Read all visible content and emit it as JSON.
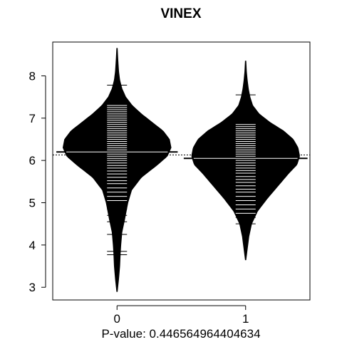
{
  "chart_data": {
    "type": "beanplot",
    "title": "VINEX",
    "xlabel": "P-value: 0.446564964404634",
    "ylabel": "",
    "categories": [
      "0",
      "1"
    ],
    "ylim": [
      2.7,
      8.8
    ],
    "yticks": [
      3,
      4,
      5,
      6,
      7,
      8
    ],
    "overall_mean": 6.13,
    "groups": [
      {
        "category": "0",
        "mean": 6.2,
        "range": [
          2.9,
          8.65
        ],
        "density": [
          [
            2.9,
            0.005
          ],
          [
            3.2,
            0.03
          ],
          [
            3.5,
            0.05
          ],
          [
            3.8,
            0.06
          ],
          [
            4.0,
            0.07
          ],
          [
            4.3,
            0.09
          ],
          [
            4.6,
            0.14
          ],
          [
            5.0,
            0.2
          ],
          [
            5.3,
            0.27
          ],
          [
            5.6,
            0.45
          ],
          [
            5.9,
            0.75
          ],
          [
            6.1,
            0.93
          ],
          [
            6.3,
            1.0
          ],
          [
            6.5,
            0.97
          ],
          [
            6.7,
            0.85
          ],
          [
            6.9,
            0.65
          ],
          [
            7.1,
            0.45
          ],
          [
            7.3,
            0.28
          ],
          [
            7.5,
            0.16
          ],
          [
            7.7,
            0.09
          ],
          [
            7.9,
            0.05
          ],
          [
            8.1,
            0.03
          ],
          [
            8.4,
            0.015
          ],
          [
            8.65,
            0.005
          ]
        ],
        "observations": [
          3.77,
          3.85,
          4.25,
          4.55,
          4.7,
          4.85,
          4.95,
          5.05,
          5.15,
          5.25,
          5.35,
          5.45,
          5.52,
          5.6,
          5.68,
          5.75,
          5.82,
          5.88,
          5.94,
          6.0,
          6.05,
          6.1,
          6.15,
          6.2,
          6.25,
          6.3,
          6.35,
          6.4,
          6.45,
          6.5,
          6.55,
          6.6,
          6.65,
          6.7,
          6.75,
          6.8,
          6.85,
          6.9,
          6.95,
          7.0,
          7.05,
          7.1,
          7.15,
          7.2,
          7.25,
          7.3,
          7.78
        ]
      },
      {
        "category": "1",
        "mean": 6.05,
        "range": [
          3.65,
          8.35
        ],
        "density": [
          [
            3.65,
            0.005
          ],
          [
            3.9,
            0.03
          ],
          [
            4.2,
            0.06
          ],
          [
            4.5,
            0.11
          ],
          [
            4.8,
            0.22
          ],
          [
            5.1,
            0.4
          ],
          [
            5.4,
            0.6
          ],
          [
            5.7,
            0.8
          ],
          [
            5.9,
            0.95
          ],
          [
            6.1,
            1.0
          ],
          [
            6.3,
            0.97
          ],
          [
            6.5,
            0.88
          ],
          [
            6.7,
            0.7
          ],
          [
            6.9,
            0.45
          ],
          [
            7.1,
            0.25
          ],
          [
            7.3,
            0.13
          ],
          [
            7.5,
            0.08
          ],
          [
            7.7,
            0.05
          ],
          [
            7.9,
            0.03
          ],
          [
            8.1,
            0.015
          ],
          [
            8.35,
            0.005
          ]
        ],
        "observations": [
          4.5,
          4.65,
          4.75,
          4.85,
          4.95,
          5.05,
          5.15,
          5.25,
          5.32,
          5.4,
          5.48,
          5.55,
          5.62,
          5.7,
          5.76,
          5.82,
          5.88,
          5.94,
          6.0,
          6.05,
          6.1,
          6.15,
          6.2,
          6.25,
          6.3,
          6.35,
          6.4,
          6.45,
          6.5,
          6.55,
          6.6,
          6.65,
          6.7,
          6.75,
          6.8,
          6.85,
          7.55
        ]
      }
    ]
  }
}
